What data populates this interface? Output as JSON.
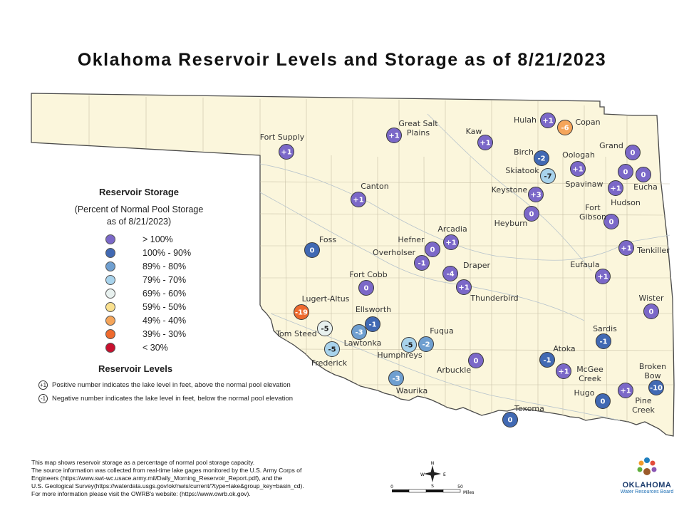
{
  "title": "Oklahoma Reservoir Levels and Storage as of 8/21/2023",
  "legend": {
    "title": "Reservoir Storage",
    "subtitle_line1": "(Percent of Normal Pool Storage",
    "subtitle_line2": "as of 8/21/2023)",
    "classes": [
      {
        "label": "> 100%",
        "color": "#7b68c8"
      },
      {
        "label": "100% - 90%",
        "color": "#4169b3"
      },
      {
        "label": "89% - 80%",
        "color": "#6f9fd0"
      },
      {
        "label": "79% - 70%",
        "color": "#a8d3ec"
      },
      {
        "label": "69% - 60%",
        "color": "#e8f1ef"
      },
      {
        "label": "59% - 50%",
        "color": "#f9e08e"
      },
      {
        "label": "49% - 40%",
        "color": "#f5a55a"
      },
      {
        "label": "39% - 30%",
        "color": "#ee6a2e"
      },
      {
        "label": "< 30%",
        "color": "#c8102e"
      }
    ]
  },
  "levels": {
    "title": "Reservoir Levels",
    "positive_icon": "+1",
    "positive_text": "Positive number indicates the lake level in feet, above the normal pool elevation",
    "negative_icon": "-1",
    "negative_text": "Negative number indicates the lake level in feet, below the normal pool elevation"
  },
  "reservoirs": [
    {
      "name": "Fort Supply",
      "level": "+1",
      "cls": 0
    },
    {
      "name": "Great Salt Plains",
      "level": "+1",
      "cls": 0
    },
    {
      "name": "Kaw",
      "level": "+1",
      "cls": 0
    },
    {
      "name": "Hulah",
      "level": "+1",
      "cls": 0
    },
    {
      "name": "Copan",
      "level": "-6",
      "cls": 6
    },
    {
      "name": "Birch",
      "level": "-2",
      "cls": 1
    },
    {
      "name": "Skiatook",
      "level": "-7",
      "cls": 3
    },
    {
      "name": "Oologah",
      "level": "+1",
      "cls": 0
    },
    {
      "name": "Grand",
      "level": "0",
      "cls": 0
    },
    {
      "name": "Spavinaw",
      "level": "0",
      "cls": 0
    },
    {
      "name": "Eucha",
      "level": "0",
      "cls": 0
    },
    {
      "name": "Hudson",
      "level": "+1",
      "cls": 0
    },
    {
      "name": "Keystone",
      "level": "+3",
      "cls": 0
    },
    {
      "name": "Heyburn",
      "level": "0",
      "cls": 0
    },
    {
      "name": "Fort Gibson",
      "level": "0",
      "cls": 0
    },
    {
      "name": "Canton",
      "level": "+1",
      "cls": 0
    },
    {
      "name": "Foss",
      "level": "0",
      "cls": 1
    },
    {
      "name": "Hefner",
      "level": "0",
      "cls": 0
    },
    {
      "name": "Arcadia",
      "level": "+1",
      "cls": 0
    },
    {
      "name": "Overholser",
      "level": "-1",
      "cls": 0
    },
    {
      "name": "Tenkiller",
      "level": "+1",
      "cls": 0
    },
    {
      "name": "Draper",
      "level": "-4",
      "cls": 0
    },
    {
      "name": "Thunderbird",
      "level": "+1",
      "cls": 0
    },
    {
      "name": "Eufaula",
      "level": "+1",
      "cls": 0
    },
    {
      "name": "Fort Cobb",
      "level": "0",
      "cls": 0
    },
    {
      "name": "Lugert-Altus",
      "level": "-19",
      "cls": 7
    },
    {
      "name": "Ellsworth",
      "level": "-1",
      "cls": 1
    },
    {
      "name": "Wister",
      "level": "0",
      "cls": 0
    },
    {
      "name": "Tom Steed",
      "level": "-5",
      "cls": 4
    },
    {
      "name": "Lawtonka",
      "level": "-3",
      "cls": 2
    },
    {
      "name": "Fuqua",
      "level": "-2",
      "cls": 2
    },
    {
      "name": "Humphreys",
      "level": "-5",
      "cls": 3
    },
    {
      "name": "Sardis",
      "level": "-1",
      "cls": 1
    },
    {
      "name": "Frederick",
      "level": "-5",
      "cls": 3
    },
    {
      "name": "Arbuckle",
      "level": "0",
      "cls": 0
    },
    {
      "name": "Atoka",
      "level": "-1",
      "cls": 1
    },
    {
      "name": "McGee Creek",
      "level": "+1",
      "cls": 0
    },
    {
      "name": "Broken Bow",
      "level": "-10",
      "cls": 1
    },
    {
      "name": "Waurika",
      "level": "-3",
      "cls": 2
    },
    {
      "name": "Pine Creek",
      "level": "+1",
      "cls": 0
    },
    {
      "name": "Hugo",
      "level": "0",
      "cls": 1
    },
    {
      "name": "Texoma",
      "level": "0",
      "cls": 1
    }
  ],
  "notes": [
    "This map shows reservoir storage as a percentage of normal pool storage capacity.",
    "The source information was collected from real-time lake gages monitored by the U.S. Army Corps of",
    "Engineers (https://www.swt-wc.usace.army.mil/Daily_Morning_Reservoir_Report.pdf), and the",
    "U.S. Geological Survey(https://waterdata.usgs.gov/ok/nwis/current/?type=lake&group_key=basin_cd).",
    "For more information please visit the OWRB's website: (https://www.owrb.ok.gov)."
  ],
  "scale": {
    "start": "0",
    "end": "50",
    "unit": "Miles"
  },
  "compass": {
    "n": "N",
    "s": "S",
    "e": "E",
    "w": "W"
  },
  "brand": {
    "name": "OKLAHOMA",
    "tagline": "Water Resources Board"
  }
}
